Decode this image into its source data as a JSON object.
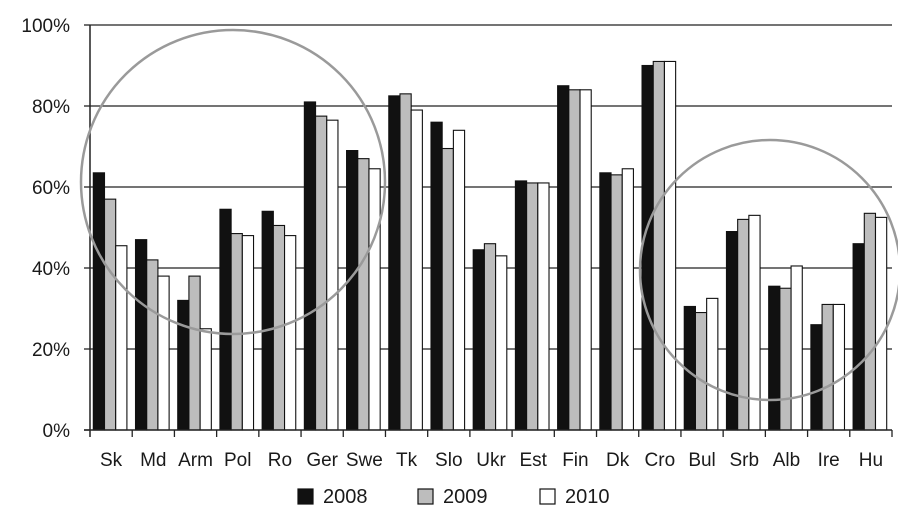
{
  "chart_data": {
    "type": "bar",
    "title": "",
    "xlabel": "",
    "ylabel": "",
    "ylim": [
      0,
      100
    ],
    "yticks": [
      "0%",
      "20%",
      "40%",
      "60%",
      "80%",
      "100%"
    ],
    "grid": true,
    "legend_position": "bottom",
    "categories": [
      "Sk",
      "Md",
      "Arm",
      "Pol",
      "Ro",
      "Ger",
      "Swe",
      "Tk",
      "Slo",
      "Ukr",
      "Est",
      "Fin",
      "Dk",
      "Cro",
      "Bul",
      "Srb",
      "Alb",
      "Ire",
      "Hu"
    ],
    "series": [
      {
        "name": "2008",
        "color": "#111111",
        "values": [
          63.5,
          47,
          32,
          54.5,
          54,
          81,
          69,
          82.5,
          76,
          44.5,
          61.5,
          85,
          63.5,
          90,
          30.5,
          49,
          35.5,
          26,
          46
        ]
      },
      {
        "name": "2009",
        "color": "#bdbdbd",
        "values": [
          57,
          42,
          38,
          48.5,
          50.5,
          77.5,
          67,
          83,
          69.5,
          46,
          61,
          84,
          63,
          91,
          29,
          52,
          35,
          31,
          53.5
        ]
      },
      {
        "name": "2010",
        "color": "#ffffff",
        "values": [
          45.5,
          38,
          25,
          48,
          48,
          76.5,
          64.5,
          79,
          74,
          43,
          61,
          84,
          64.5,
          91,
          32.5,
          53,
          40.5,
          31,
          52.5
        ]
      }
    ],
    "annotations": [
      {
        "type": "circle",
        "description": "highlight ring around left group"
      },
      {
        "type": "circle",
        "description": "highlight ring around right group"
      }
    ]
  }
}
